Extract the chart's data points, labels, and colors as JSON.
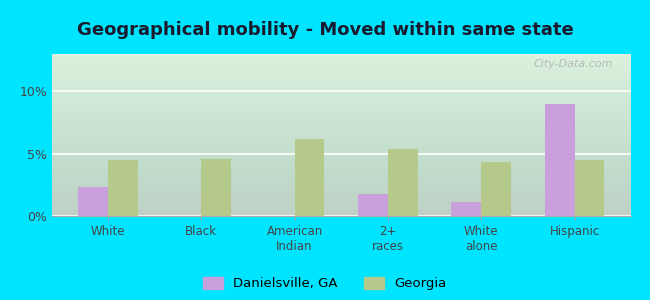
{
  "title": "Geographical mobility - Moved within same state",
  "categories": [
    "White",
    "Black",
    "American\nIndian",
    "2+\nraces",
    "White\nalone",
    "Hispanic"
  ],
  "danielsville_values": [
    2.3,
    0.0,
    0.0,
    1.8,
    1.1,
    9.0
  ],
  "georgia_values": [
    4.5,
    4.6,
    6.2,
    5.4,
    4.3,
    4.5
  ],
  "danielsville_color": "#c9a0dc",
  "georgia_color": "#b5c98a",
  "legend_labels": [
    "Danielsville, GA",
    "Georgia"
  ],
  "ylim": [
    0,
    13
  ],
  "yticks": [
    0,
    5,
    10
  ],
  "ytick_labels": [
    "0%",
    "5%",
    "10%"
  ],
  "bg_top": "#ffffff",
  "bg_bottom": "#c8e6c0",
  "outer_background": "#00e5ff",
  "bar_width": 0.32,
  "title_fontsize": 13,
  "watermark": "City-Data.com"
}
